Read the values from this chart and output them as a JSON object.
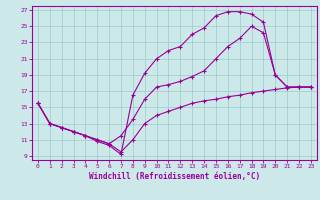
{
  "xlabel": "Windchill (Refroidissement éolien,°C)",
  "bg_color": "#cde8e8",
  "line_color": "#990099",
  "grid_color": "#99cccc",
  "xlim": [
    -0.5,
    23.5
  ],
  "ylim": [
    8.5,
    27.5
  ],
  "xticks": [
    0,
    1,
    2,
    3,
    4,
    5,
    6,
    7,
    8,
    9,
    10,
    11,
    12,
    13,
    14,
    15,
    16,
    17,
    18,
    19,
    20,
    21,
    22,
    23
  ],
  "yticks": [
    9,
    11,
    13,
    15,
    17,
    19,
    21,
    23,
    25,
    27
  ],
  "line1_x": [
    0,
    1,
    2,
    3,
    4,
    5,
    6,
    7,
    8,
    9,
    10,
    11,
    12,
    13,
    14,
    15,
    16,
    17,
    18,
    19,
    20,
    21,
    22,
    23
  ],
  "line1_y": [
    15.5,
    13.0,
    12.5,
    12.0,
    11.5,
    10.8,
    10.3,
    9.2,
    16.5,
    19.2,
    21.0,
    22.0,
    22.5,
    24.0,
    24.8,
    26.3,
    26.8,
    26.8,
    26.5,
    25.5,
    19.0,
    17.5,
    17.5,
    17.5
  ],
  "line2_x": [
    0,
    1,
    2,
    3,
    4,
    5,
    6,
    7,
    8,
    9,
    10,
    11,
    12,
    13,
    14,
    15,
    16,
    17,
    18,
    19,
    20,
    21,
    22,
    23
  ],
  "line2_y": [
    15.5,
    13.0,
    12.5,
    12.0,
    11.5,
    11.0,
    10.5,
    11.5,
    13.5,
    16.0,
    17.5,
    17.8,
    18.2,
    18.8,
    19.5,
    21.0,
    22.5,
    23.5,
    25.0,
    24.2,
    19.0,
    17.5,
    17.5,
    17.5
  ],
  "line3_x": [
    0,
    1,
    2,
    3,
    4,
    5,
    6,
    7,
    8,
    9,
    10,
    11,
    12,
    13,
    14,
    15,
    16,
    17,
    18,
    19,
    20,
    21,
    22,
    23
  ],
  "line3_y": [
    15.5,
    13.0,
    12.5,
    12.0,
    11.5,
    11.0,
    10.5,
    9.5,
    11.0,
    13.0,
    14.0,
    14.5,
    15.0,
    15.5,
    15.8,
    16.0,
    16.3,
    16.5,
    16.8,
    17.0,
    17.2,
    17.4,
    17.5,
    17.5
  ]
}
